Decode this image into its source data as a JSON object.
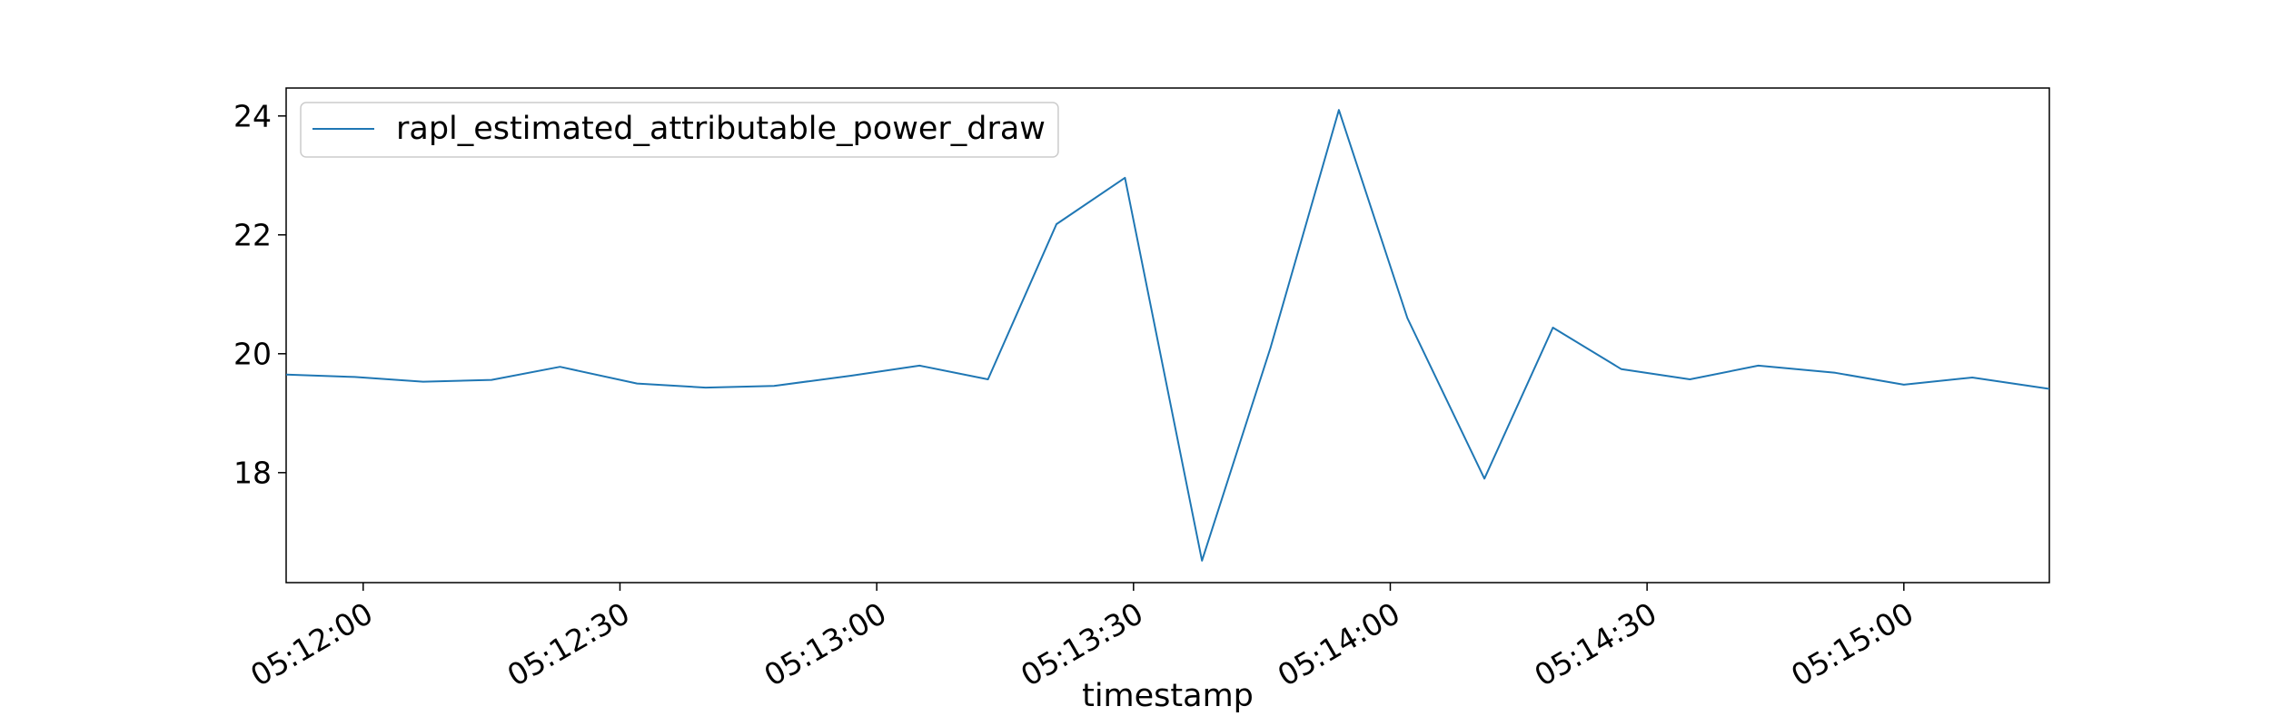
{
  "chart_data": {
    "type": "line",
    "title": "",
    "xlabel": "timestamp",
    "ylabel": "",
    "x_scale": "time",
    "xlim": [
      "05:11:51",
      "05:15:17"
    ],
    "ylim": [
      16.15,
      24.47
    ],
    "x_ticks": [
      "05:12:00",
      "05:12:30",
      "05:13:00",
      "05:13:30",
      "05:14:00",
      "05:14:30",
      "05:15:00"
    ],
    "y_ticks": [
      18,
      20,
      22,
      24
    ],
    "grid": false,
    "legend": {
      "position": "top-left",
      "entries": [
        "rapl_estimated_attributable_power_draw"
      ]
    },
    "colors": {
      "series": "#1f77b4",
      "axes": "#000000",
      "legend_border": "#cccccc"
    },
    "series": [
      {
        "name": "rapl_estimated_attributable_power_draw",
        "x": [
          "05:11:51",
          "05:11:59",
          "05:12:07",
          "05:12:15",
          "05:12:23",
          "05:12:32",
          "05:12:40",
          "05:12:48",
          "05:12:57",
          "05:13:05",
          "05:13:13",
          "05:13:21",
          "05:13:29",
          "05:13:38",
          "05:13:46",
          "05:13:54",
          "05:14:02",
          "05:14:11",
          "05:14:19",
          "05:14:27",
          "05:14:35",
          "05:14:43",
          "05:14:52",
          "05:15:00",
          "05:15:08",
          "05:15:17"
        ],
        "y": [
          19.65,
          19.61,
          19.53,
          19.56,
          19.78,
          19.5,
          19.43,
          19.46,
          19.63,
          19.8,
          19.57,
          22.18,
          22.96,
          16.52,
          20.1,
          24.1,
          20.6,
          17.9,
          20.44,
          19.74,
          19.57,
          19.8,
          19.68,
          19.48,
          19.6,
          19.41
        ]
      }
    ]
  }
}
